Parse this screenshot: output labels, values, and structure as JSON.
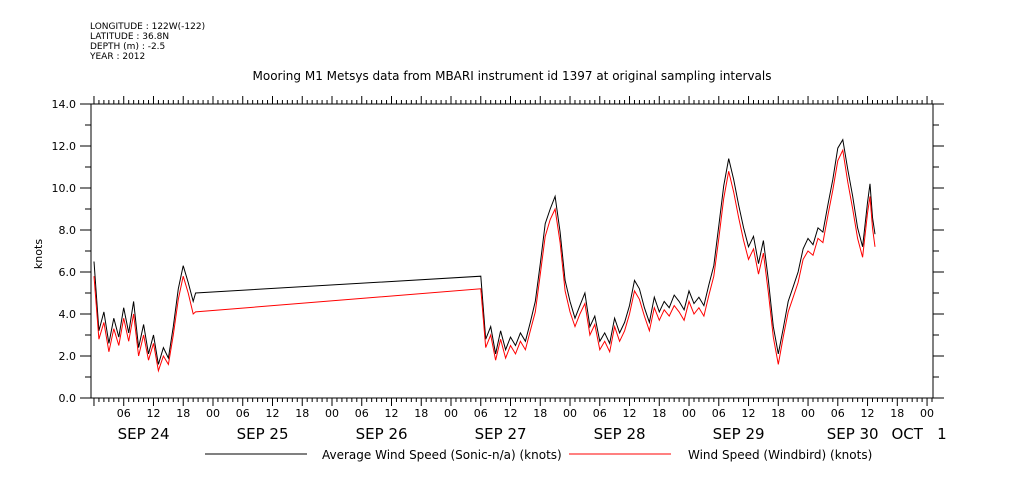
{
  "header": {
    "longitude": "LONGITUDE : 122W(-122)",
    "latitude": "LATITUDE : 36.8N",
    "depth": "DEPTH (m) : -2.5",
    "year": "YEAR : 2012"
  },
  "chart_data": {
    "type": "line",
    "title": "Mooring M1 Metsys data from MBARI instrument id 1397 at original sampling intervals",
    "ylabel": "knots",
    "xlabel": "",
    "ylim": [
      0,
      14
    ],
    "y_ticks": [
      "0.0",
      "2.0",
      "4.0",
      "6.0",
      "8.0",
      "10.0",
      "12.0",
      "14.0"
    ],
    "x_unit": "hours since SEP 24 00:00",
    "xlim": [
      -0.6,
      169.2
    ],
    "hour_ticks": [
      {
        "x": 6,
        "label": "06"
      },
      {
        "x": 12,
        "label": "12"
      },
      {
        "x": 18,
        "label": "18"
      },
      {
        "x": 24,
        "label": "00"
      },
      {
        "x": 30,
        "label": "06"
      },
      {
        "x": 36,
        "label": "12"
      },
      {
        "x": 42,
        "label": "18"
      },
      {
        "x": 48,
        "label": "00"
      },
      {
        "x": 54,
        "label": "06"
      },
      {
        "x": 60,
        "label": "12"
      },
      {
        "x": 66,
        "label": "18"
      },
      {
        "x": 72,
        "label": "00"
      },
      {
        "x": 78,
        "label": "06"
      },
      {
        "x": 84,
        "label": "12"
      },
      {
        "x": 90,
        "label": "18"
      },
      {
        "x": 96,
        "label": "00"
      },
      {
        "x": 102,
        "label": "06"
      },
      {
        "x": 108,
        "label": "12"
      },
      {
        "x": 114,
        "label": "18"
      },
      {
        "x": 120,
        "label": "00"
      },
      {
        "x": 126,
        "label": "06"
      },
      {
        "x": 132,
        "label": "12"
      },
      {
        "x": 138,
        "label": "18"
      },
      {
        "x": 144,
        "label": "00"
      },
      {
        "x": 150,
        "label": "06"
      },
      {
        "x": 156,
        "label": "12"
      },
      {
        "x": 162,
        "label": "18"
      },
      {
        "x": 168,
        "label": "00"
      }
    ],
    "day_labels": [
      {
        "x": 10,
        "label": "SEP 24"
      },
      {
        "x": 34,
        "label": "SEP 25"
      },
      {
        "x": 58,
        "label": "SEP 26"
      },
      {
        "x": 82,
        "label": "SEP 27"
      },
      {
        "x": 106,
        "label": "SEP 28"
      },
      {
        "x": 130,
        "label": "SEP 29"
      },
      {
        "x": 153,
        "label": "SEP 30"
      },
      {
        "x": 164,
        "label": "OCT"
      },
      {
        "x": 171,
        "label": "1"
      }
    ],
    "series": [
      {
        "name": "Average Wind Speed (Sonic-n/a) (knots)",
        "color": "#000000",
        "points": [
          [
            0,
            6.5
          ],
          [
            1,
            3.2
          ],
          [
            2,
            4.1
          ],
          [
            3,
            2.6
          ],
          [
            4,
            3.8
          ],
          [
            5,
            2.9
          ],
          [
            6,
            4.3
          ],
          [
            7,
            3.1
          ],
          [
            8,
            4.6
          ],
          [
            9,
            2.4
          ],
          [
            10,
            3.5
          ],
          [
            11,
            2.1
          ],
          [
            12,
            3.0
          ],
          [
            13,
            1.6
          ],
          [
            14,
            2.4
          ],
          [
            15,
            1.9
          ],
          [
            16,
            3.4
          ],
          [
            17,
            5.2
          ],
          [
            18,
            6.3
          ],
          [
            19,
            5.5
          ],
          [
            20,
            4.6
          ],
          [
            20.5,
            5.0
          ],
          [
            78,
            5.8
          ],
          [
            79,
            2.8
          ],
          [
            80,
            3.4
          ],
          [
            81,
            2.1
          ],
          [
            82,
            3.2
          ],
          [
            83,
            2.3
          ],
          [
            84,
            2.9
          ],
          [
            85,
            2.5
          ],
          [
            86,
            3.1
          ],
          [
            87,
            2.7
          ],
          [
            88,
            3.6
          ],
          [
            89,
            4.6
          ],
          [
            90,
            6.4
          ],
          [
            91,
            8.3
          ],
          [
            92,
            9.0
          ],
          [
            93,
            9.6
          ],
          [
            94,
            7.9
          ],
          [
            95,
            5.6
          ],
          [
            96,
            4.6
          ],
          [
            97,
            3.8
          ],
          [
            98,
            4.4
          ],
          [
            99,
            5.0
          ],
          [
            100,
            3.4
          ],
          [
            101,
            3.9
          ],
          [
            102,
            2.7
          ],
          [
            103,
            3.1
          ],
          [
            104,
            2.6
          ],
          [
            105,
            3.8
          ],
          [
            106,
            3.1
          ],
          [
            107,
            3.6
          ],
          [
            108,
            4.4
          ],
          [
            109,
            5.6
          ],
          [
            110,
            5.2
          ],
          [
            111,
            4.3
          ],
          [
            112,
            3.6
          ],
          [
            113,
            4.8
          ],
          [
            114,
            4.1
          ],
          [
            115,
            4.6
          ],
          [
            116,
            4.3
          ],
          [
            117,
            4.9
          ],
          [
            118,
            4.6
          ],
          [
            119,
            4.2
          ],
          [
            120,
            5.1
          ],
          [
            121,
            4.5
          ],
          [
            122,
            4.8
          ],
          [
            123,
            4.4
          ],
          [
            124,
            5.4
          ],
          [
            125,
            6.3
          ],
          [
            126,
            8.2
          ],
          [
            127,
            10.1
          ],
          [
            128,
            11.4
          ],
          [
            129,
            10.4
          ],
          [
            130,
            9.2
          ],
          [
            131,
            8.1
          ],
          [
            132,
            7.2
          ],
          [
            133,
            7.7
          ],
          [
            134,
            6.4
          ],
          [
            135,
            7.5
          ],
          [
            136,
            5.6
          ],
          [
            137,
            3.4
          ],
          [
            138,
            2.1
          ],
          [
            139,
            3.3
          ],
          [
            140,
            4.6
          ],
          [
            141,
            5.3
          ],
          [
            142,
            6.0
          ],
          [
            143,
            7.1
          ],
          [
            144,
            7.6
          ],
          [
            145,
            7.3
          ],
          [
            146,
            8.1
          ],
          [
            147,
            7.9
          ],
          [
            148,
            9.2
          ],
          [
            149,
            10.4
          ],
          [
            150,
            11.9
          ],
          [
            151,
            12.3
          ],
          [
            152,
            10.9
          ],
          [
            153,
            9.6
          ],
          [
            154,
            8.1
          ],
          [
            155,
            7.2
          ],
          [
            156,
            9.3
          ],
          [
            156.5,
            10.2
          ],
          [
            157,
            8.6
          ],
          [
            157.5,
            7.8
          ]
        ]
      },
      {
        "name": "Wind Speed (Windbird) (knots)",
        "color": "#ff0000",
        "points": [
          [
            0,
            5.8
          ],
          [
            1,
            2.8
          ],
          [
            2,
            3.6
          ],
          [
            3,
            2.2
          ],
          [
            4,
            3.3
          ],
          [
            5,
            2.5
          ],
          [
            6,
            3.8
          ],
          [
            7,
            2.7
          ],
          [
            8,
            4.0
          ],
          [
            9,
            2.0
          ],
          [
            10,
            3.0
          ],
          [
            11,
            1.8
          ],
          [
            12,
            2.6
          ],
          [
            13,
            1.3
          ],
          [
            14,
            2.0
          ],
          [
            15,
            1.6
          ],
          [
            16,
            3.0
          ],
          [
            17,
            4.7
          ],
          [
            18,
            5.8
          ],
          [
            19,
            5.0
          ],
          [
            20,
            4.0
          ],
          [
            20.5,
            4.1
          ],
          [
            78,
            5.2
          ],
          [
            79,
            2.4
          ],
          [
            80,
            3.0
          ],
          [
            81,
            1.8
          ],
          [
            82,
            2.8
          ],
          [
            83,
            1.9
          ],
          [
            84,
            2.5
          ],
          [
            85,
            2.1
          ],
          [
            86,
            2.7
          ],
          [
            87,
            2.3
          ],
          [
            88,
            3.2
          ],
          [
            89,
            4.1
          ],
          [
            90,
            5.9
          ],
          [
            91,
            7.7
          ],
          [
            92,
            8.5
          ],
          [
            93,
            9.0
          ],
          [
            94,
            7.4
          ],
          [
            95,
            5.1
          ],
          [
            96,
            4.1
          ],
          [
            97,
            3.4
          ],
          [
            98,
            4.0
          ],
          [
            99,
            4.5
          ],
          [
            100,
            3.0
          ],
          [
            101,
            3.5
          ],
          [
            102,
            2.3
          ],
          [
            103,
            2.7
          ],
          [
            104,
            2.2
          ],
          [
            105,
            3.4
          ],
          [
            106,
            2.7
          ],
          [
            107,
            3.2
          ],
          [
            108,
            4.0
          ],
          [
            109,
            5.1
          ],
          [
            110,
            4.7
          ],
          [
            111,
            3.9
          ],
          [
            112,
            3.2
          ],
          [
            113,
            4.3
          ],
          [
            114,
            3.7
          ],
          [
            115,
            4.2
          ],
          [
            116,
            3.9
          ],
          [
            117,
            4.4
          ],
          [
            118,
            4.1
          ],
          [
            119,
            3.7
          ],
          [
            120,
            4.6
          ],
          [
            121,
            4.0
          ],
          [
            122,
            4.3
          ],
          [
            123,
            3.9
          ],
          [
            124,
            4.9
          ],
          [
            125,
            5.8
          ],
          [
            126,
            7.6
          ],
          [
            127,
            9.5
          ],
          [
            128,
            10.8
          ],
          [
            129,
            9.8
          ],
          [
            130,
            8.6
          ],
          [
            131,
            7.5
          ],
          [
            132,
            6.6
          ],
          [
            133,
            7.1
          ],
          [
            134,
            5.9
          ],
          [
            135,
            6.9
          ],
          [
            136,
            5.0
          ],
          [
            137,
            2.9
          ],
          [
            138,
            1.6
          ],
          [
            139,
            2.9
          ],
          [
            140,
            4.1
          ],
          [
            141,
            4.8
          ],
          [
            142,
            5.5
          ],
          [
            143,
            6.6
          ],
          [
            144,
            7.0
          ],
          [
            145,
            6.8
          ],
          [
            146,
            7.6
          ],
          [
            147,
            7.4
          ],
          [
            148,
            8.7
          ],
          [
            149,
            9.9
          ],
          [
            150,
            11.3
          ],
          [
            151,
            11.8
          ],
          [
            152,
            10.3
          ],
          [
            153,
            9.0
          ],
          [
            154,
            7.6
          ],
          [
            155,
            6.7
          ],
          [
            156,
            8.8
          ],
          [
            156.5,
            9.6
          ],
          [
            157,
            8.1
          ],
          [
            157.5,
            7.2
          ]
        ]
      }
    ],
    "legend_position": "bottom"
  }
}
